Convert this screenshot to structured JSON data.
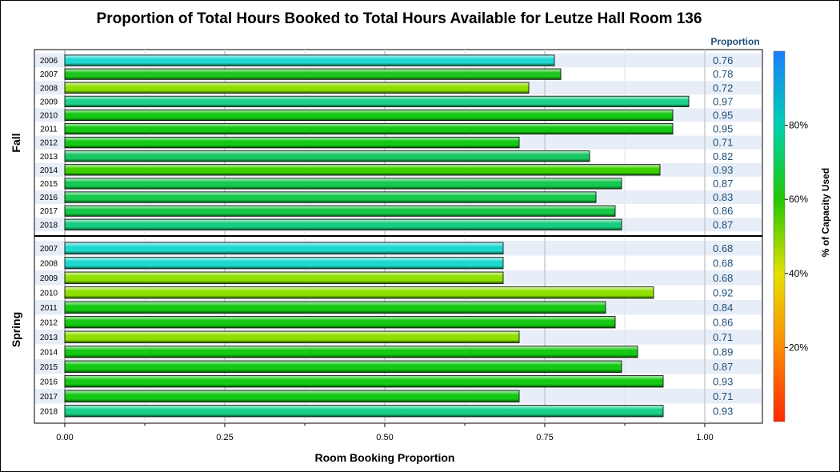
{
  "chart_data": {
    "type": "bar",
    "orientation": "horizontal",
    "title": "Proportion of Total Hours Booked to Total Hours Available for Leutze Hall Room 136",
    "xlabel": "Room Booking Proportion",
    "xlim": [
      0,
      1.05
    ],
    "x_ticks": [
      "0.00",
      "0.25",
      "0.50",
      "0.75",
      "1.00"
    ],
    "value_column_header": "Proportion",
    "legend": {
      "title": "% of Capacity Used",
      "ticks": [
        "20%",
        "40%",
        "60%",
        "80%"
      ],
      "placement": "right",
      "colors": [
        "#ff2a00",
        "#ff8a00",
        "#e4e000",
        "#22c800",
        "#00d0b0",
        "#1a7fff"
      ]
    },
    "panels": [
      {
        "name": "Fall",
        "categories": [
          "2006",
          "2007",
          "2008",
          "2009",
          "2010",
          "2011",
          "2012",
          "2013",
          "2014",
          "2015",
          "2016",
          "2017",
          "2018"
        ],
        "values": [
          0.765,
          0.775,
          0.725,
          0.975,
          0.95,
          0.95,
          0.71,
          0.82,
          0.93,
          0.87,
          0.83,
          0.86,
          0.87
        ],
        "labels": [
          "0.76",
          "0.78",
          "0.72",
          "0.97",
          "0.95",
          "0.95",
          "0.71",
          "0.82",
          "0.93",
          "0.87",
          "0.83",
          "0.86",
          "0.87"
        ],
        "colors": [
          "#1ed8d0",
          "#1ec61e",
          "#8fe000",
          "#1ed08a",
          "#14c814",
          "#14c814",
          "#14c814",
          "#18c664",
          "#40d000",
          "#14c850",
          "#18c84a",
          "#18c84a",
          "#18cc80"
        ]
      },
      {
        "name": "Spring",
        "categories": [
          "2007",
          "2008",
          "2009",
          "2010",
          "2011",
          "2012",
          "2013",
          "2014",
          "2015",
          "2016",
          "2017",
          "2018"
        ],
        "values": [
          0.685,
          0.685,
          0.685,
          0.92,
          0.845,
          0.86,
          0.71,
          0.895,
          0.87,
          0.935,
          0.71,
          0.935
        ],
        "labels": [
          "0.68",
          "0.68",
          "0.68",
          "0.92",
          "0.84",
          "0.86",
          "0.71",
          "0.89",
          "0.87",
          "0.93",
          "0.71",
          "0.93"
        ],
        "colors": [
          "#1ed8d0",
          "#1ed8d0",
          "#8fe000",
          "#8fe000",
          "#14c814",
          "#14c814",
          "#8fe000",
          "#14c814",
          "#14c814",
          "#14c814",
          "#14c814",
          "#18d08a"
        ]
      }
    ]
  }
}
